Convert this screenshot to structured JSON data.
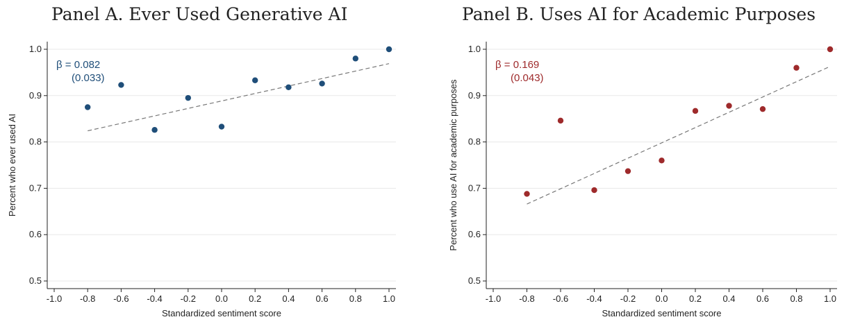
{
  "chart_data": [
    {
      "type": "scatter",
      "panel_title": "Panel A. Ever Used Generative AI",
      "xlabel": "Standardized sentiment score",
      "ylabel": "Percent who ever used AI",
      "xlim": [
        -1.0,
        1.0
      ],
      "ylim": [
        0.5,
        1.0
      ],
      "x_ticks": [
        "-1.0",
        "-0.8",
        "-0.6",
        "-0.4",
        "-0.2",
        "0.0",
        "0.2",
        "0.4",
        "0.6",
        "0.8",
        "1.0"
      ],
      "y_ticks": [
        "0.5",
        "0.6",
        "0.7",
        "0.8",
        "0.9",
        "1.0"
      ],
      "grid": "horizontal",
      "color": "#1f4e79",
      "points": [
        {
          "x": -0.8,
          "y": 0.875
        },
        {
          "x": -0.6,
          "y": 0.923
        },
        {
          "x": -0.4,
          "y": 0.826
        },
        {
          "x": -0.2,
          "y": 0.895
        },
        {
          "x": 0.0,
          "y": 0.833
        },
        {
          "x": 0.2,
          "y": 0.933
        },
        {
          "x": 0.4,
          "y": 0.918
        },
        {
          "x": 0.6,
          "y": 0.926
        },
        {
          "x": 0.8,
          "y": 0.98
        },
        {
          "x": 1.0,
          "y": 1.0
        }
      ],
      "fit_line": {
        "x": [
          -0.8,
          1.0
        ],
        "y": [
          0.824,
          0.969
        ]
      },
      "annotation_beta": "β = 0.082",
      "annotation_se": "(0.033)"
    },
    {
      "type": "scatter",
      "panel_title": "Panel B. Uses AI for Academic Purposes",
      "xlabel": "Standardized sentiment score",
      "ylabel": "Percent who use AI for academic purposes",
      "xlim": [
        -1.0,
        1.0
      ],
      "ylim": [
        0.5,
        1.0
      ],
      "x_ticks": [
        "-1.0",
        "-0.8",
        "-0.6",
        "-0.4",
        "-0.2",
        "0.0",
        "0.2",
        "0.4",
        "0.6",
        "0.8",
        "1.0"
      ],
      "y_ticks": [
        "0.5",
        "0.6",
        "0.7",
        "0.8",
        "0.9",
        "1.0"
      ],
      "grid": "horizontal",
      "color": "#9e2a2b",
      "points": [
        {
          "x": -0.8,
          "y": 0.688
        },
        {
          "x": -0.6,
          "y": 0.846
        },
        {
          "x": -0.4,
          "y": 0.696
        },
        {
          "x": -0.2,
          "y": 0.737
        },
        {
          "x": 0.0,
          "y": 0.76
        },
        {
          "x": 0.2,
          "y": 0.867
        },
        {
          "x": 0.4,
          "y": 0.878
        },
        {
          "x": 0.6,
          "y": 0.871
        },
        {
          "x": 0.8,
          "y": 0.96
        },
        {
          "x": 1.0,
          "y": 1.0
        }
      ],
      "fit_line": {
        "x": [
          -0.8,
          1.0
        ],
        "y": [
          0.666,
          0.963
        ]
      },
      "annotation_beta": "β = 0.169",
      "annotation_se": "(0.043)"
    }
  ]
}
